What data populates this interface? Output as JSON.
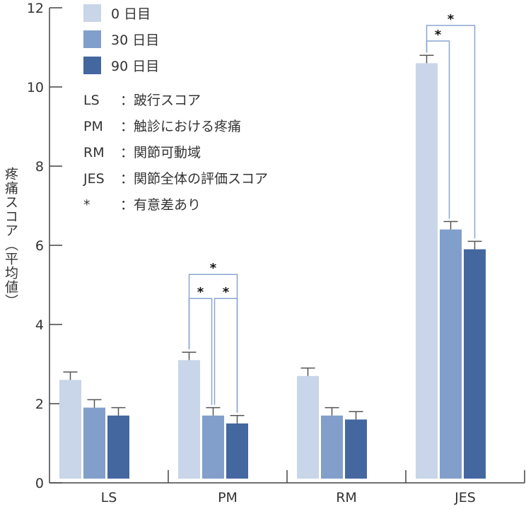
{
  "chart_data": {
    "type": "bar",
    "title": "",
    "xlabel": "",
    "ylabel": "疼痛スコア（平均値）",
    "ylim": [
      0,
      12
    ],
    "yticks": [
      0,
      2,
      4,
      6,
      8,
      10,
      12
    ],
    "categories": [
      "LS",
      "PM",
      "RM",
      "JES"
    ],
    "series": [
      {
        "name": "0 日目",
        "color": "#c9d5e8",
        "values": [
          2.6,
          3.1,
          2.7,
          10.6
        ],
        "error": [
          0.2,
          0.2,
          0.2,
          0.2
        ]
      },
      {
        "name": "30 日目",
        "color": "#819fca",
        "values": [
          1.9,
          1.7,
          1.7,
          6.4
        ],
        "error": [
          0.2,
          0.2,
          0.2,
          0.2
        ]
      },
      {
        "name": "90 日目",
        "color": "#4467a0",
        "values": [
          1.7,
          1.5,
          1.6,
          5.9
        ],
        "error": [
          0.2,
          0.2,
          0.2,
          0.2
        ]
      }
    ],
    "significance": [
      {
        "category": "PM",
        "pair": [
          0,
          1
        ],
        "label": "*"
      },
      {
        "category": "PM",
        "pair": [
          1,
          2
        ],
        "label": "*"
      },
      {
        "category": "PM",
        "pair": [
          0,
          2
        ],
        "label": "*"
      },
      {
        "category": "JES",
        "pair": [
          0,
          1
        ],
        "label": "*"
      },
      {
        "category": "JES",
        "pair": [
          0,
          2
        ],
        "label": "*"
      }
    ],
    "legend_position": "top-left",
    "grid": false,
    "bracket_color": "#8aa5d4"
  },
  "notes": [
    {
      "key": "LS",
      "text": "：跛行スコア"
    },
    {
      "key": "PM",
      "text": "：触診における疼痛"
    },
    {
      "key": "RM",
      "text": "：関節可動域"
    },
    {
      "key": "JES",
      "text": "：関節全体の評価スコア"
    },
    {
      "key": "*",
      "text": "：有意差あり"
    }
  ]
}
